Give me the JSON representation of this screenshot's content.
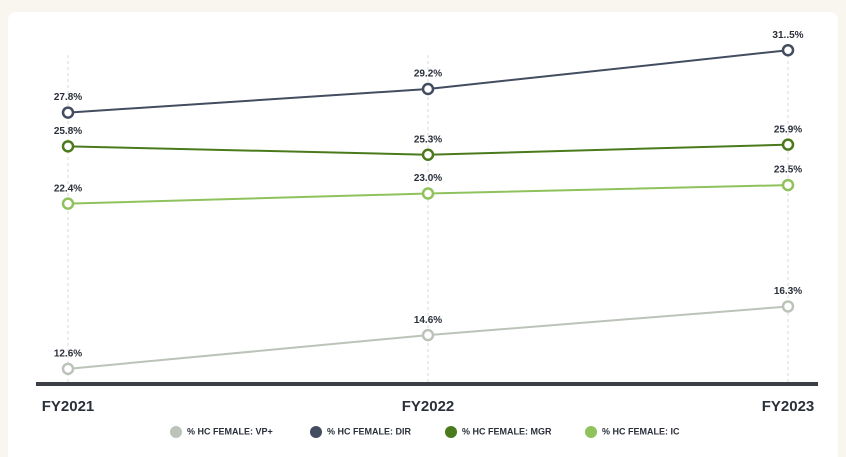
{
  "chart_data": {
    "type": "line",
    "categories": [
      "FY2021",
      "FY2022",
      "FY2023"
    ],
    "series": [
      {
        "name": "% HC FEMALE: VP+",
        "color": "#bcc4ba",
        "values": [
          12.6,
          14.6,
          16.3
        ],
        "value_labels": [
          "12.6%",
          "14.6%",
          "16.3%"
        ]
      },
      {
        "name": "% HC FEMALE: DIR",
        "color": "#434d60",
        "values": [
          27.8,
          29.2,
          31.5
        ],
        "value_labels": [
          "27.8%",
          "29.2%",
          "31..5%"
        ]
      },
      {
        "name": "% HC FEMALE: MGR",
        "color": "#4b7a1c",
        "values": [
          25.8,
          25.3,
          25.9
        ],
        "value_labels": [
          "25.8%",
          "25.3%",
          "25.9%"
        ]
      },
      {
        "name": "% HC FEMALE: IC",
        "color": "#8fc25c",
        "values": [
          22.4,
          23.0,
          23.5
        ],
        "value_labels": [
          "22.4%",
          "23.0%",
          "23.5%"
        ]
      }
    ],
    "ylim": [
      11.7,
      32.7
    ]
  }
}
